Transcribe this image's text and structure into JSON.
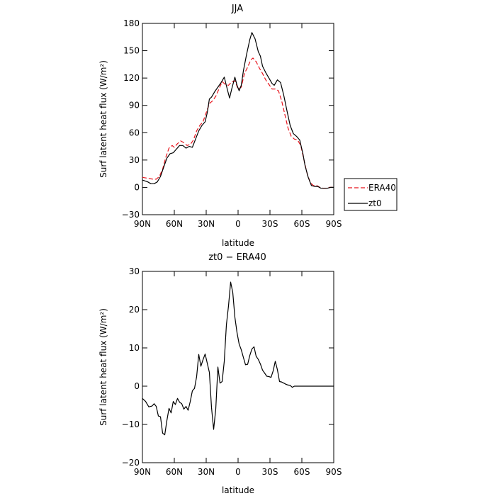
{
  "chart_data": [
    {
      "type": "line",
      "title": "JJA",
      "xlabel": "latitude",
      "ylabel": "Surf latent heat flux (W/m²)",
      "xlim": [
        90,
        -90
      ],
      "ylim": [
        -30,
        180
      ],
      "xticks": [
        90,
        60,
        30,
        0,
        -30,
        -60,
        -90
      ],
      "xtick_labels": [
        "90N",
        "60N",
        "30N",
        "0",
        "30S",
        "60S",
        "90S"
      ],
      "yticks": [
        -30,
        0,
        30,
        60,
        90,
        120,
        150,
        180
      ],
      "ytick_labels": [
        "−30",
        "0",
        "30",
        "60",
        "90",
        "120",
        "150",
        "180"
      ],
      "legend": "outside-right",
      "grid": false,
      "series": [
        {
          "name": "ERA40",
          "color": "#e8141c",
          "dash": "dashed",
          "points": [
            [
              90,
              11
            ],
            [
              85,
              10
            ],
            [
              80,
              9
            ],
            [
              77,
              9
            ],
            [
              74,
              12
            ],
            [
              71,
              20
            ],
            [
              68,
              33
            ],
            [
              65,
              43
            ],
            [
              62,
              46
            ],
            [
              60,
              44
            ],
            [
              57,
              48
            ],
            [
              54,
              51
            ],
            [
              51,
              49
            ],
            [
              48,
              46
            ],
            [
              45,
              47
            ],
            [
              42,
              52
            ],
            [
              39,
              62
            ],
            [
              36,
              68
            ],
            [
              33,
              72
            ],
            [
              30,
              82
            ],
            [
              27,
              92
            ],
            [
              24,
              95
            ],
            [
              21,
              100
            ],
            [
              18,
              108
            ],
            [
              15,
              116
            ],
            [
              12,
              113
            ],
            [
              9,
              112
            ],
            [
              6,
              116
            ],
            [
              3,
              117
            ],
            [
              0,
              108
            ],
            [
              -3,
              110
            ],
            [
              -6,
              125
            ],
            [
              -9,
              132
            ],
            [
              -12,
              140
            ],
            [
              -14,
              142
            ],
            [
              -17,
              138
            ],
            [
              -20,
              131
            ],
            [
              -23,
              125
            ],
            [
              -26,
              118
            ],
            [
              -29,
              113
            ],
            [
              -32,
              108
            ],
            [
              -35,
              108
            ],
            [
              -38,
              106
            ],
            [
              -41,
              95
            ],
            [
              -44,
              80
            ],
            [
              -47,
              65
            ],
            [
              -50,
              56
            ],
            [
              -53,
              53
            ],
            [
              -56,
              52
            ],
            [
              -59,
              46
            ],
            [
              -62,
              30
            ],
            [
              -65,
              15
            ],
            [
              -68,
              5
            ],
            [
              -71,
              2
            ],
            [
              -74,
              2
            ],
            [
              -77,
              0
            ],
            [
              -80,
              -1
            ],
            [
              -83,
              -1
            ],
            [
              -86,
              0
            ],
            [
              -90,
              0
            ]
          ]
        },
        {
          "name": "zt0",
          "color": "#000000",
          "dash": "solid",
          "points": [
            [
              90,
              8
            ],
            [
              85,
              6
            ],
            [
              82,
              4
            ],
            [
              79,
              4
            ],
            [
              76,
              6
            ],
            [
              73,
              12
            ],
            [
              70,
              22
            ],
            [
              67,
              32
            ],
            [
              64,
              37
            ],
            [
              61,
              38
            ],
            [
              58,
              42
            ],
            [
              55,
              46
            ],
            [
              52,
              46
            ],
            [
              49,
              43
            ],
            [
              46,
              45
            ],
            [
              43,
              44
            ],
            [
              40,
              53
            ],
            [
              37,
              62
            ],
            [
              34,
              68
            ],
            [
              31,
              72
            ],
            [
              29,
              82
            ],
            [
              27,
              97
            ],
            [
              25,
              99
            ],
            [
              22,
              105
            ],
            [
              19,
              110
            ],
            [
              16,
              115
            ],
            [
              13,
              121
            ],
            [
              10,
              107
            ],
            [
              8,
              98
            ],
            [
              6,
              108
            ],
            [
              3,
              121
            ],
            [
              1,
              112
            ],
            [
              -1,
              106
            ],
            [
              -3,
              112
            ],
            [
              -5,
              128
            ],
            [
              -8,
              146
            ],
            [
              -11,
              162
            ],
            [
              -13,
              170
            ],
            [
              -16,
              163
            ],
            [
              -19,
              149
            ],
            [
              -21,
              144
            ],
            [
              -23,
              133
            ],
            [
              -26,
              126
            ],
            [
              -29,
              120
            ],
            [
              -32,
              114
            ],
            [
              -34,
              112
            ],
            [
              -37,
              118
            ],
            [
              -40,
              115
            ],
            [
              -43,
              101
            ],
            [
              -46,
              84
            ],
            [
              -49,
              68
            ],
            [
              -52,
              59
            ],
            [
              -55,
              56
            ],
            [
              -58,
              52
            ],
            [
              -61,
              37
            ],
            [
              -63,
              24
            ],
            [
              -66,
              11
            ],
            [
              -69,
              2
            ],
            [
              -72,
              1
            ],
            [
              -75,
              1
            ],
            [
              -78,
              -1
            ],
            [
              -81,
              -1
            ],
            [
              -84,
              -1
            ],
            [
              -87,
              0
            ],
            [
              -90,
              0
            ]
          ]
        }
      ]
    },
    {
      "type": "line",
      "title": "zt0 − ERA40",
      "xlabel": "latitude",
      "ylabel": "Surf latent heat flux (W/m²)",
      "xlim": [
        90,
        -90
      ],
      "ylim": [
        -20,
        30
      ],
      "xticks": [
        90,
        60,
        30,
        0,
        -30,
        -60,
        -90
      ],
      "xtick_labels": [
        "90N",
        "60N",
        "30N",
        "0",
        "30S",
        "60S",
        "90S"
      ],
      "yticks": [
        -20,
        -10,
        0,
        10,
        20,
        30
      ],
      "ytick_labels": [
        "−20",
        "−10",
        "0",
        "10",
        "20",
        "30"
      ],
      "grid": false,
      "series": [
        {
          "color": "#000000",
          "dash": "solid",
          "points": [
            [
              90,
              -3.2
            ],
            [
              87,
              -4
            ],
            [
              84,
              -5.4
            ],
            [
              81,
              -5.2
            ],
            [
              79,
              -4.6
            ],
            [
              77,
              -5.3
            ],
            [
              75,
              -7.8
            ],
            [
              73,
              -8
            ],
            [
              71,
              -12.3
            ],
            [
              69,
              -12.7
            ],
            [
              67,
              -9
            ],
            [
              65,
              -5.8
            ],
            [
              63,
              -7
            ],
            [
              61,
              -4
            ],
            [
              59,
              -4.8
            ],
            [
              57,
              -3.2
            ],
            [
              55,
              -4.2
            ],
            [
              53,
              -4.6
            ],
            [
              51,
              -6
            ],
            [
              49,
              -5.3
            ],
            [
              47,
              -6.3
            ],
            [
              45,
              -4
            ],
            [
              43,
              -1.2
            ],
            [
              41,
              -0.6
            ],
            [
              39,
              2.5
            ],
            [
              37,
              8.3
            ],
            [
              35,
              5.2
            ],
            [
              33,
              6.9
            ],
            [
              31,
              8.4
            ],
            [
              29,
              6
            ],
            [
              27,
              3.6
            ],
            [
              25,
              -5.6
            ],
            [
              23,
              -11.3
            ],
            [
              21,
              -6
            ],
            [
              19,
              5
            ],
            [
              17,
              0.8
            ],
            [
              15,
              1.2
            ],
            [
              13,
              6.5
            ],
            [
              11,
              16
            ],
            [
              9,
              21
            ],
            [
              7,
              27.2
            ],
            [
              5,
              24.5
            ],
            [
              3,
              18
            ],
            [
              1,
              14
            ],
            [
              -1,
              11
            ],
            [
              -3,
              9.5
            ],
            [
              -5,
              7.5
            ],
            [
              -7,
              5.6
            ],
            [
              -9,
              5.7
            ],
            [
              -11,
              8
            ],
            [
              -13,
              9.7
            ],
            [
              -15,
              10.3
            ],
            [
              -17,
              7.8
            ],
            [
              -19,
              7
            ],
            [
              -21,
              5.8
            ],
            [
              -23,
              4.2
            ],
            [
              -25,
              3.4
            ],
            [
              -27,
              2.6
            ],
            [
              -29,
              2.5
            ],
            [
              -31,
              2.3
            ],
            [
              -33,
              4
            ],
            [
              -35,
              6.5
            ],
            [
              -37,
              4.3
            ],
            [
              -39,
              1.2
            ],
            [
              -41,
              1.1
            ],
            [
              -43,
              0.8
            ],
            [
              -45,
              0.5
            ],
            [
              -47,
              0.3
            ],
            [
              -49,
              0.2
            ],
            [
              -51,
              -0.3
            ],
            [
              -53,
              0
            ],
            [
              -55,
              0
            ],
            [
              -57,
              0
            ],
            [
              -59,
              0
            ],
            [
              -61,
              0
            ],
            [
              -63,
              0
            ],
            [
              -65,
              0
            ],
            [
              -67,
              0
            ],
            [
              -69,
              0
            ],
            [
              -71,
              0
            ],
            [
              -73,
              0
            ],
            [
              -75,
              0
            ],
            [
              -77,
              0
            ],
            [
              -79,
              0
            ],
            [
              -81,
              0
            ],
            [
              -83,
              0
            ],
            [
              -85,
              0
            ],
            [
              -87,
              0
            ],
            [
              -90,
              0
            ]
          ]
        }
      ]
    }
  ]
}
